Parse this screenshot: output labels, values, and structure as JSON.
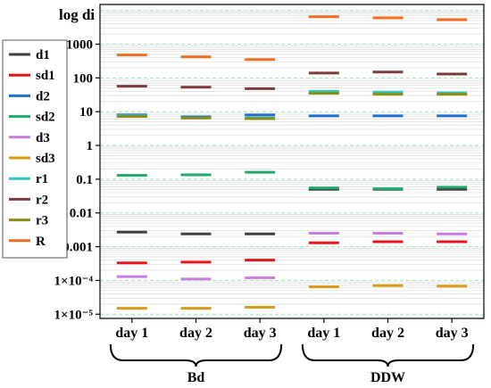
{
  "chart_data": {
    "type": "scatter",
    "ylabel": "log di",
    "yscale": "log",
    "ylim": [
      7.5e-06,
      15000
    ],
    "yticks": [
      {
        "value": 1e-05,
        "label": "1×10⁻⁵"
      },
      {
        "value": 0.0001,
        "label": "1×10⁻⁴"
      },
      {
        "value": 0.001,
        "label": "0.001"
      },
      {
        "value": 0.01,
        "label": "0.01"
      },
      {
        "value": 0.1,
        "label": "0.1"
      },
      {
        "value": 1,
        "label": "1"
      },
      {
        "value": 10,
        "label": "10"
      },
      {
        "value": 100,
        "label": "100"
      },
      {
        "value": 1000,
        "label": "1000"
      }
    ],
    "categories": [
      "day 1",
      "day 2",
      "day 3",
      "day 1",
      "day 2",
      "day 3"
    ],
    "groups": [
      {
        "label": "Bd",
        "from": 0,
        "to": 2
      },
      {
        "label": "DDW",
        "from": 3,
        "to": 5
      }
    ],
    "grid": true,
    "legend_position": "left-outside",
    "series": [
      {
        "name": "d1",
        "color": "#404040",
        "values": [
          0.0027,
          0.0024,
          0.0024,
          0.05,
          0.05,
          0.05
        ]
      },
      {
        "name": "sd1",
        "color": "#e8151b",
        "values": [
          0.00033,
          0.00035,
          0.0004,
          0.0013,
          0.0014,
          0.0014
        ]
      },
      {
        "name": "d2",
        "color": "#1f6fd1",
        "values": [
          8,
          7,
          8,
          7.5,
          7.5,
          7.5
        ]
      },
      {
        "name": "sd2",
        "color": "#1faa6a",
        "values": [
          0.13,
          0.135,
          0.16,
          0.055,
          0.052,
          0.058
        ]
      },
      {
        "name": "d3",
        "color": "#c77ee0",
        "values": [
          0.00013,
          0.00011,
          0.00012,
          0.0025,
          0.0025,
          0.0024
        ]
      },
      {
        "name": "sd3",
        "color": "#d89a17",
        "values": [
          1.5e-05,
          1.5e-05,
          1.6e-05,
          6.5e-05,
          7e-05,
          6.8e-05
        ]
      },
      {
        "name": "r1",
        "color": "#2ec7c2",
        "values": [
          7.5,
          6.5,
          6.5,
          40,
          38,
          36
        ]
      },
      {
        "name": "r2",
        "color": "#7a3b3b",
        "values": [
          57,
          53,
          48,
          140,
          150,
          130
        ]
      },
      {
        "name": "r3",
        "color": "#8c8c16",
        "values": [
          7.2,
          6.5,
          6.2,
          35,
          33,
          33
        ]
      },
      {
        "name": "R",
        "color": "#ef6e21",
        "values": [
          480,
          420,
          350,
          6500,
          6000,
          5300
        ]
      }
    ]
  }
}
